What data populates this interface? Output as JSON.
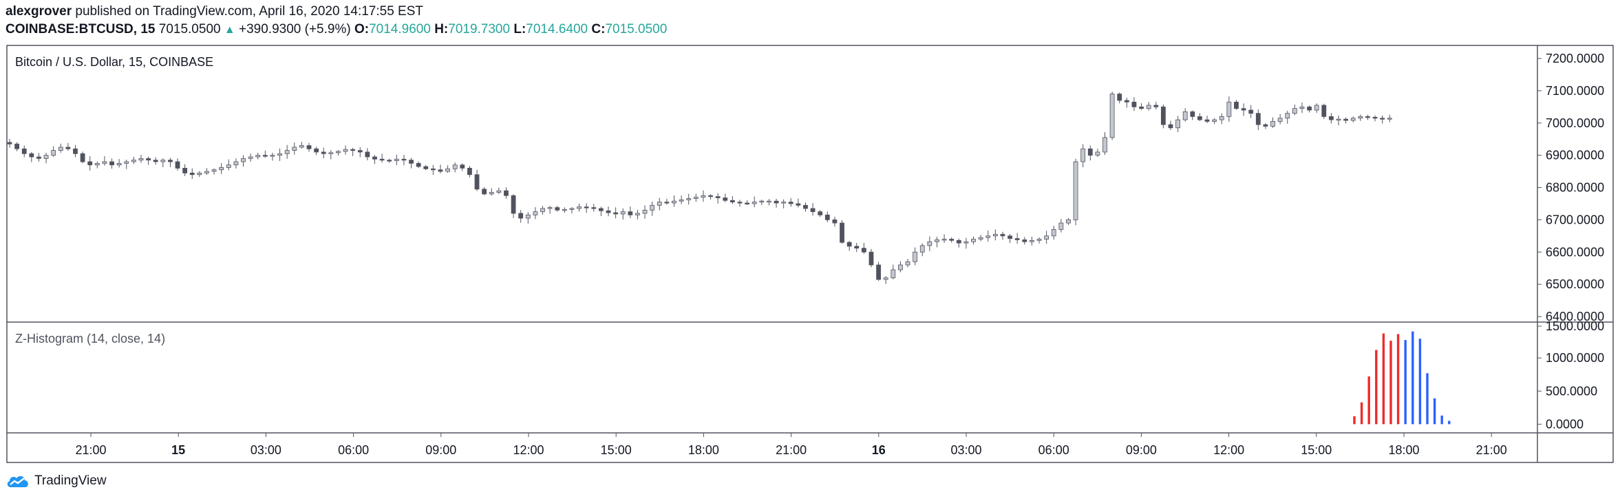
{
  "header": {
    "author": "alexgrover",
    "published_text": "published on TradingView.com, April 16, 2020 14:17:55 EST",
    "symbol": "COINBASE:BTCUSD, 15",
    "last": "7015.0500",
    "change": "+390.9300 (+5.9%)",
    "o_label": "O:",
    "o_value": "7014.9600",
    "h_label": "H:",
    "h_value": "7019.7300",
    "l_label": "L:",
    "l_value": "7014.6400",
    "c_label": "C:",
    "c_value": "7015.0500"
  },
  "colors": {
    "up_text": "#26a69a",
    "candle_up": "#c4c7d0",
    "candle_down": "#50535e",
    "hist_red": "#ee2a2a",
    "hist_blue": "#2962ff"
  },
  "footer": {
    "brand": "TradingView",
    "logo_icon": "tradingview-cloud-icon"
  },
  "chart_data": [
    {
      "type": "candlestick",
      "title": "Bitcoin / U.S. Dollar, 15, COINBASE",
      "ylim": [
        6400,
        7200
      ],
      "yticks": [
        "7200.0000",
        "7100.0000",
        "7000.0000",
        "6900.0000",
        "6800.0000",
        "6700.0000",
        "6600.0000",
        "6500.0000",
        "6400.0000"
      ],
      "xticks": [
        "21:00",
        "15",
        "03:00",
        "06:00",
        "09:00",
        "12:00",
        "15:00",
        "18:00",
        "21:00",
        "16",
        "03:00",
        "06:00",
        "09:00",
        "12:00",
        "15:00",
        "18:00",
        "21:00"
      ],
      "bold_xticks": [
        "15",
        "16"
      ],
      "close_path": [
        6935,
        6920,
        6905,
        6895,
        6890,
        6900,
        6915,
        6925,
        6920,
        6905,
        6880,
        6870,
        6875,
        6880,
        6870,
        6875,
        6880,
        6885,
        6890,
        6885,
        6880,
        6885,
        6880,
        6860,
        6845,
        6840,
        6845,
        6850,
        6855,
        6862,
        6870,
        6880,
        6890,
        6895,
        6900,
        6898,
        6900,
        6905,
        6915,
        6925,
        6930,
        6920,
        6910,
        6905,
        6908,
        6912,
        6918,
        6915,
        6910,
        6895,
        6888,
        6885,
        6883,
        6888,
        6885,
        6875,
        6865,
        6858,
        6855,
        6850,
        6858,
        6870,
        6860,
        6840,
        6795,
        6780,
        6785,
        6790,
        6775,
        6720,
        6705,
        6715,
        6725,
        6735,
        6738,
        6730,
        6732,
        6735,
        6740,
        6738,
        6735,
        6728,
        6722,
        6718,
        6725,
        6715,
        6720,
        6730,
        6745,
        6755,
        6752,
        6758,
        6762,
        6766,
        6770,
        6775,
        6772,
        6768,
        6760,
        6755,
        6752,
        6750,
        6755,
        6758,
        6758,
        6752,
        6755,
        6750,
        6745,
        6735,
        6725,
        6715,
        6700,
        6690,
        6630,
        6618,
        6612,
        6600,
        6560,
        6515,
        6520,
        6545,
        6560,
        6570,
        6600,
        6620,
        6632,
        6638,
        6640,
        6636,
        6628,
        6632,
        6640,
        6645,
        6650,
        6655,
        6650,
        6642,
        6638,
        6632,
        6636,
        6640,
        6650,
        6670,
        6690,
        6700,
        6880,
        6920,
        6900,
        6910,
        6955,
        7090,
        7070,
        7065,
        7050,
        7045,
        7055,
        7050,
        6995,
        6985,
        7010,
        7035,
        7020,
        7010,
        7005,
        7010,
        7020,
        7065,
        7045,
        7040,
        7030,
        6995,
        6990,
        7005,
        7015,
        7030,
        7045,
        7050,
        7040,
        7055,
        7020,
        7010,
        7012,
        7008,
        7015,
        7020,
        7018,
        7015,
        7014,
        7015
      ]
    },
    {
      "type": "bar",
      "title": "Z-Histogram (14, close, 14)",
      "ylim": [
        -100,
        1500
      ],
      "yticks": [
        "1500.0000",
        "1000.0000",
        "500.0000",
        "0.0000"
      ],
      "series": [
        {
          "color_key": "hist_red",
          "values": [
            120,
            330,
            720,
            1120,
            1370,
            1260,
            1360
          ]
        },
        {
          "color_key": "hist_blue",
          "values": [
            1270,
            1400,
            1290,
            770,
            390,
            130,
            50
          ]
        }
      ]
    }
  ]
}
